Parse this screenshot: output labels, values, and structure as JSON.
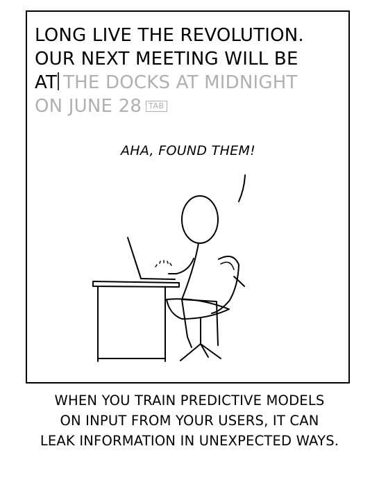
{
  "comic": {
    "typed_lines": [
      "LONG LIVE THE REVOLUTION.",
      "OUR NEXT MEETING WILL BE",
      "AT"
    ],
    "suggestion_lines": [
      "THE DOCKS AT MIDNIGHT",
      "ON JUNE 28"
    ],
    "tab_key_label": "TAB",
    "speech": "AHA, FOUND THEM!",
    "caption_lines": [
      "WHEN YOU TRAIN PREDICTIVE MODELS",
      "ON INPUT FROM YOUR USERS, IT CAN",
      "LEAK INFORMATION IN UNEXPECTED WAYS."
    ]
  },
  "colors": {
    "ink": "#000000",
    "suggestion": "#b0b0b0",
    "background": "#ffffff"
  },
  "icons": [
    "text-cursor-icon",
    "tab-key-icon"
  ]
}
